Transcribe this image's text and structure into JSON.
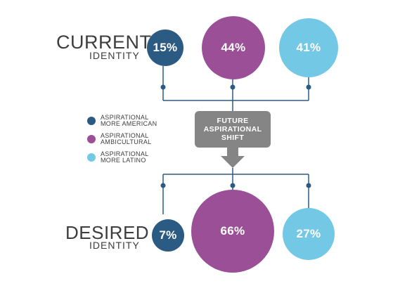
{
  "current": {
    "title": "CURRENT",
    "subtitle": "IDENTITY",
    "values": [
      "15%",
      "44%",
      "41%"
    ]
  },
  "desired": {
    "title": "DESIRED",
    "subtitle": "IDENTITY",
    "values": [
      "7%",
      "66%",
      "27%"
    ]
  },
  "shift": {
    "label": "FUTURE\nASPIRATIONAL\nSHIFT"
  },
  "legend": [
    {
      "line1": "ASPIRATIONAL",
      "line2": "MORE AMERICAN",
      "color": "#2b5a82"
    },
    {
      "line1": "ASPIRATIONAL",
      "line2": "AMBICULTURAL",
      "color": "#9b4f96"
    },
    {
      "line1": "ASPIRATIONAL",
      "line2": "MORE LATINO",
      "color": "#73c8e6"
    }
  ],
  "colors": {
    "american": "#2b5a82",
    "ambicultural": "#9b4f96",
    "latino": "#73c8e6",
    "connector": "#2b5a82",
    "shift_box": "#858585"
  }
}
